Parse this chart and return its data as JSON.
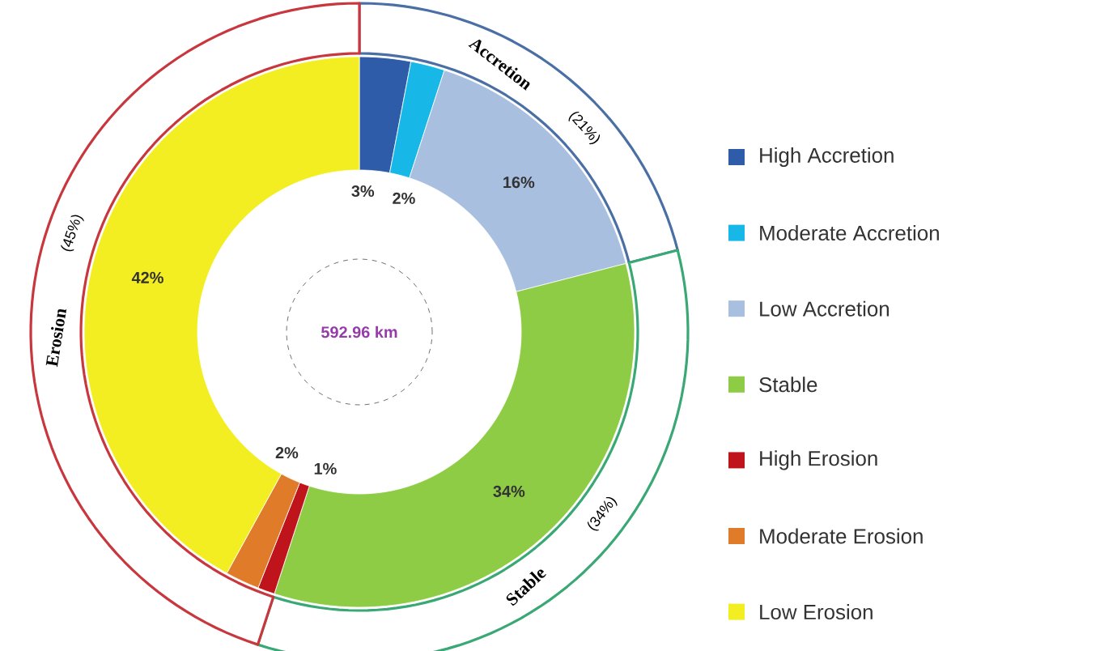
{
  "chart_data": [
    {
      "type": "donut",
      "categories": [
        "Accretion",
        "Stable",
        "Erosion"
      ],
      "values": [
        21,
        34,
        45
      ],
      "colors": [
        "#4a6fa5",
        "#3aa875",
        "#c8373e"
      ],
      "value_labels": [
        "(21%)",
        "(34%)",
        "(45%)"
      ]
    },
    {
      "type": "donut",
      "categories": [
        "High Accretion",
        "Moderate Accretion",
        "Low Accretion",
        "Stable",
        "High Erosion",
        "Moderate Erosion",
        "Low Erosion"
      ],
      "values": [
        3,
        2,
        16,
        34,
        1,
        2,
        42
      ],
      "colors": [
        "#2e5ca8",
        "#17b8e8",
        "#a8bfe0",
        "#8fcc45",
        "#c0141c",
        "#e07b2a",
        "#f2ee22"
      ],
      "value_labels": [
        "3%",
        "2%",
        "16%",
        "34%",
        "1%",
        "2%",
        "42%"
      ],
      "annotations": [
        "592.96 km"
      ],
      "legend": "right"
    }
  ]
}
